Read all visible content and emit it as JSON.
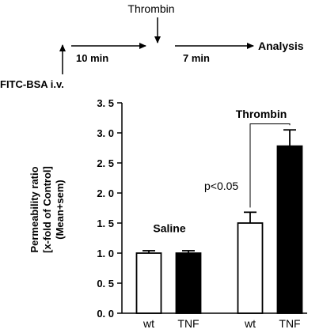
{
  "protocol": {
    "injection_label": "FITC-BSA i.v.",
    "interval_1_label": "10 min",
    "stimulus_label": "Thrombin",
    "interval_2_label": "7 min",
    "endpoint_label": "Analysis"
  },
  "chart_data": {
    "type": "bar",
    "ylabel_lines": [
      "Permeability ratio",
      "[x-fold of Control]",
      "(Mean+sem)"
    ],
    "ylim": [
      0.0,
      3.5
    ],
    "yticks": [
      0.0,
      0.5,
      1.0,
      1.5,
      2.0,
      2.5,
      3.0,
      3.5
    ],
    "ytick_labels": [
      "0. 0",
      "0. 5",
      "1. 0",
      "1. 5",
      "2. 0",
      "2. 5",
      "3. 0",
      "3. 5"
    ],
    "grid": false,
    "groups": [
      {
        "label": "Saline",
        "bars": [
          {
            "category": "wt",
            "value": 1.0,
            "sem": 0.04,
            "fill": "#ffffff"
          },
          {
            "category": "TNF",
            "value": 1.0,
            "sem": 0.04,
            "fill": "#000000"
          }
        ]
      },
      {
        "label": "Thrombin",
        "bars": [
          {
            "category": "wt",
            "value": 1.5,
            "sem": 0.18,
            "fill": "#ffffff"
          },
          {
            "category": "TNF",
            "value": 2.78,
            "sem": 0.27,
            "fill": "#000000"
          }
        ]
      }
    ],
    "annotations": [
      {
        "text": "p<0.05",
        "between": [
          "Thrombin/wt",
          "Thrombin/TNF"
        ]
      }
    ]
  }
}
